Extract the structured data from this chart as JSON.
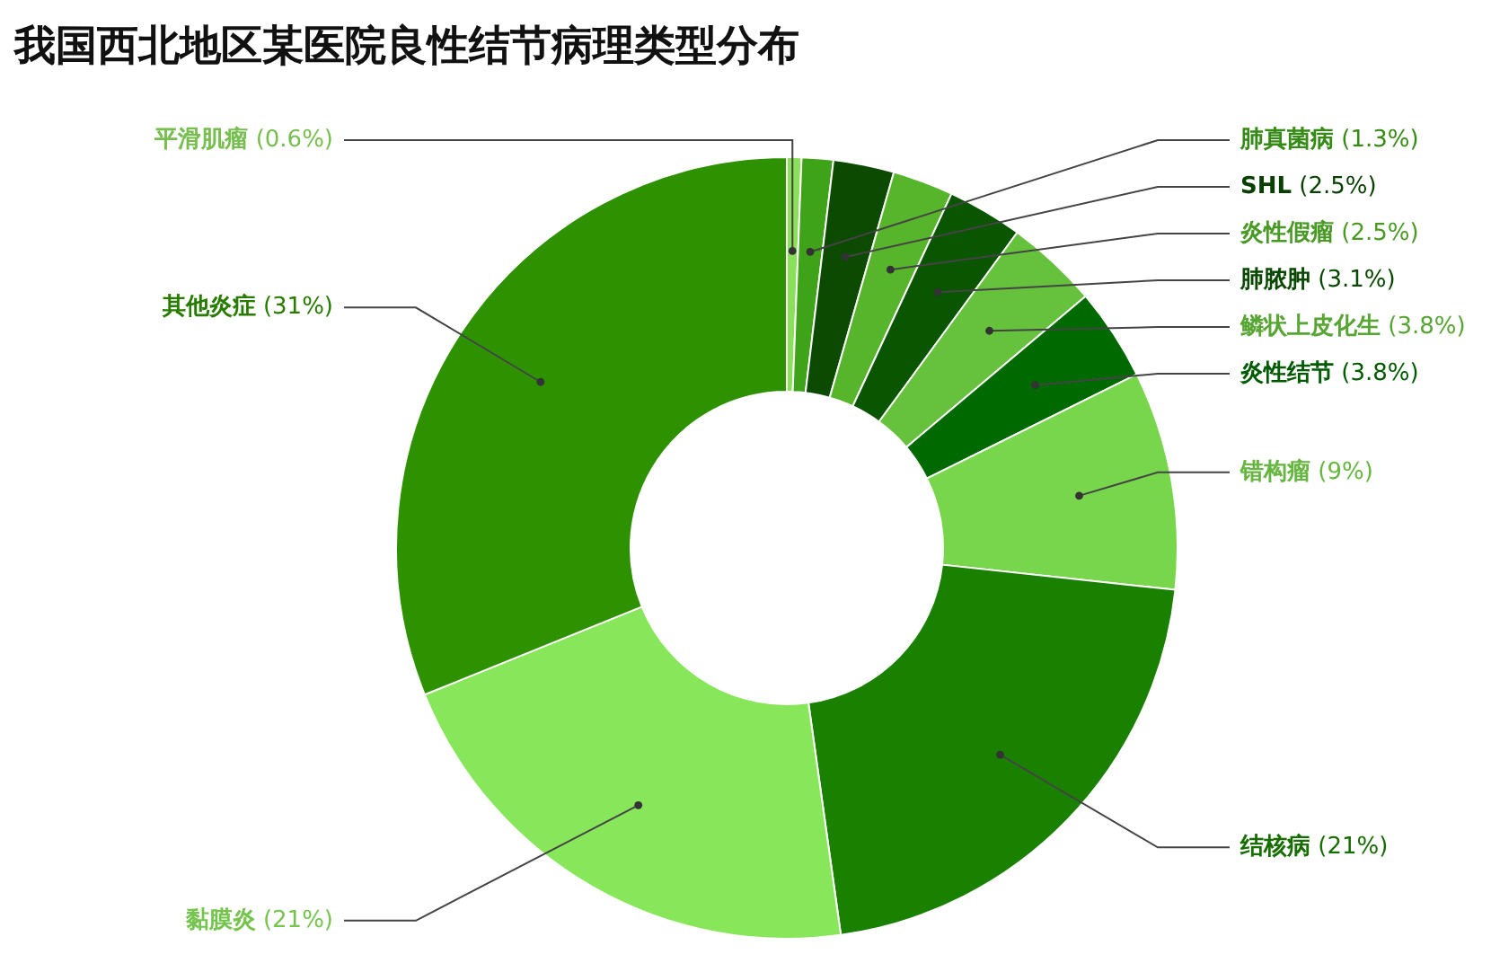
{
  "chart_data": {
    "type": "donut",
    "title": "我国西北地区某医院良性结节病理类型分布",
    "categories": [
      "平滑肌瘤",
      "肺真菌病",
      "SHL",
      "炎性假瘤",
      "肺脓肿",
      "鳞状上皮化生",
      "炎性结节",
      "错构瘤",
      "结核病",
      "黏膜炎",
      "其他炎症"
    ],
    "values": [
      0.6,
      1.3,
      2.5,
      2.5,
      3.1,
      3.8,
      3.8,
      9,
      21,
      21,
      31
    ],
    "value_labels": [
      "(0.6%)",
      "(1.3%)",
      "(2.5%)",
      "(2.5%)",
      "(3.1%)",
      "(3.8%)",
      "(3.8%)",
      "(9%)",
      "(21%)",
      "(21%)",
      "(31%)"
    ],
    "colors": [
      "#8be05a",
      "#3fa31a",
      "#0b4a00",
      "#56b52a",
      "#0a5500",
      "#66c23c",
      "#006a00",
      "#78d64c",
      "#1a8000",
      "#88e65a",
      "#2e9200"
    ],
    "legend": false
  }
}
